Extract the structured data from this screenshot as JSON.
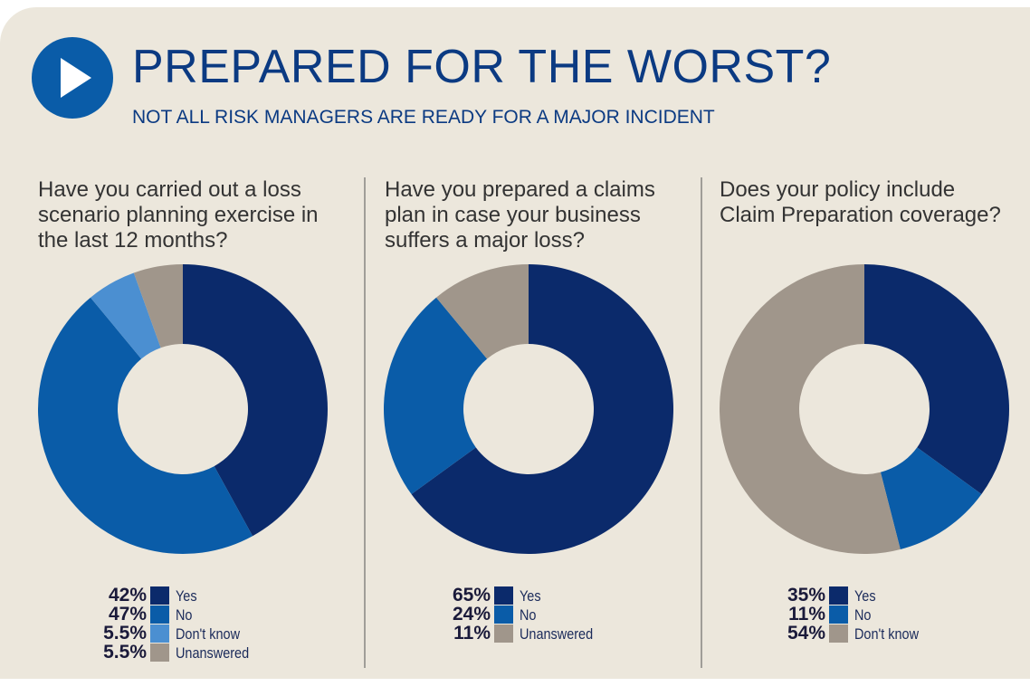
{
  "header": {
    "title": "PREPARED FOR THE WORST?",
    "subtitle": "NOT ALL RISK MANAGERS ARE READY FOR A MAJOR INCIDENT"
  },
  "chart_data": [
    {
      "type": "pie",
      "title": "Have you carried out a loss scenario planning exercise in the last 12 months?",
      "categories": [
        "Yes",
        "No",
        "Don't know",
        "Unanswered"
      ],
      "values": [
        42,
        47,
        5.5,
        5.5
      ],
      "value_labels": [
        "42%",
        "47%",
        "5.5%",
        "5.5%"
      ],
      "colors": [
        "#0b2a6b",
        "#0a5ca8",
        "#4b8fd1",
        "#a0968b"
      ]
    },
    {
      "type": "pie",
      "title": "Have you prepared a claims plan in case your business suffers a major loss?",
      "categories": [
        "Yes",
        "No",
        "Unanswered"
      ],
      "values": [
        65,
        24,
        11
      ],
      "value_labels": [
        "65%",
        "24%",
        "11%"
      ],
      "colors": [
        "#0b2a6b",
        "#0a5ca8",
        "#a0968b"
      ]
    },
    {
      "type": "pie",
      "title": "Does your policy include Claim Preparation coverage?",
      "categories": [
        "Yes",
        "No",
        "Don't know"
      ],
      "values": [
        35,
        11,
        54
      ],
      "value_labels": [
        "35%",
        "11%",
        "54%"
      ],
      "colors": [
        "#0b2a6b",
        "#0a5ca8",
        "#a0968b"
      ]
    }
  ]
}
